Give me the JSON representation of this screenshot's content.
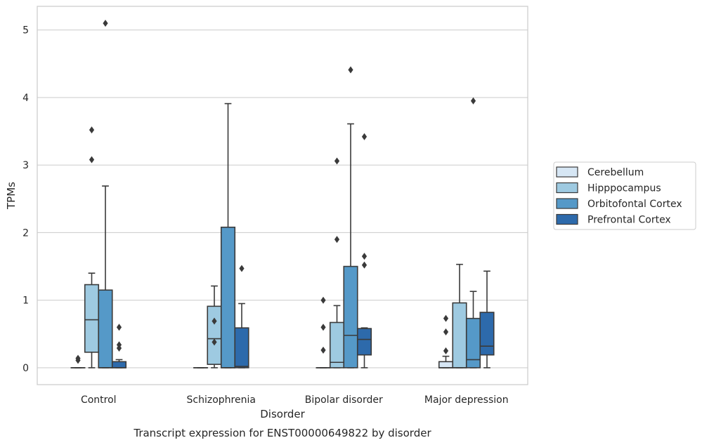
{
  "chart_data": {
    "type": "box",
    "title": "Transcript expression for ENST00000649822 by disorder",
    "xlabel": "Disorder",
    "ylabel": "TPMs",
    "ylim": [
      -0.25,
      5.35
    ],
    "yticks": [
      0,
      1,
      2,
      3,
      4,
      5
    ],
    "grid": "horizontal",
    "legend_position": "right",
    "categories": [
      "Control",
      "Schizophrenia",
      "Bipolar disorder",
      "Major depression"
    ],
    "series": [
      {
        "name": "Cerebellum",
        "color": "#d6e6f4",
        "boxes": [
          {
            "category": "Control",
            "whisker_low": 0,
            "q1": 0,
            "median": 0,
            "q3": 0,
            "whisker_high": 0,
            "outliers": [
              0.11,
              0.14
            ]
          },
          {
            "category": "Schizophrenia",
            "whisker_low": 0,
            "q1": 0,
            "median": 0,
            "q3": 0,
            "whisker_high": 0,
            "outliers": []
          },
          {
            "category": "Bipolar disorder",
            "whisker_low": 0,
            "q1": 0,
            "median": 0,
            "q3": 0,
            "whisker_high": 0,
            "outliers": [
              0.26,
              0.6,
              1.0
            ]
          },
          {
            "category": "Major depression",
            "whisker_low": 0,
            "q1": 0,
            "median": 0,
            "q3": 0.09,
            "whisker_high": 0.17,
            "outliers": [
              0.25,
              0.53,
              0.73
            ]
          }
        ]
      },
      {
        "name": "Hipppocampus",
        "color": "#9ecae1",
        "boxes": [
          {
            "category": "Control",
            "whisker_low": 0,
            "q1": 0.23,
            "median": 0.71,
            "q3": 1.23,
            "whisker_high": 1.4,
            "outliers": [
              3.08,
              3.52
            ]
          },
          {
            "category": "Schizophrenia",
            "whisker_low": 0,
            "q1": 0.05,
            "median": 0.43,
            "q3": 0.91,
            "whisker_high": 1.21,
            "outliers": [
              0.38,
              0.69
            ]
          },
          {
            "category": "Bipolar disorder",
            "whisker_low": 0,
            "q1": 0,
            "median": 0.08,
            "q3": 0.67,
            "whisker_high": 0.92,
            "outliers": [
              1.9,
              3.06
            ]
          },
          {
            "category": "Major depression",
            "whisker_low": 0,
            "q1": 0,
            "median": 0,
            "q3": 0.96,
            "whisker_high": 1.53,
            "outliers": []
          }
        ]
      },
      {
        "name": "Orbitofontal Cortex",
        "color": "#5599c8",
        "boxes": [
          {
            "category": "Control",
            "whisker_low": 0,
            "q1": 0,
            "median": 0,
            "q3": 1.15,
            "whisker_high": 2.69,
            "outliers": [
              5.1
            ]
          },
          {
            "category": "Schizophrenia",
            "whisker_low": 0,
            "q1": 0,
            "median": 0,
            "q3": 2.08,
            "whisker_high": 3.91,
            "outliers": []
          },
          {
            "category": "Bipolar disorder",
            "whisker_low": 0,
            "q1": 0,
            "median": 0.48,
            "q3": 1.5,
            "whisker_high": 3.61,
            "outliers": [
              4.41
            ]
          },
          {
            "category": "Major depression",
            "whisker_low": 0,
            "q1": 0,
            "median": 0.12,
            "q3": 0.73,
            "whisker_high": 1.13,
            "outliers": [
              3.95
            ]
          }
        ]
      },
      {
        "name": "Prefrontal Cortex",
        "color": "#2d6aab",
        "boxes": [
          {
            "category": "Control",
            "whisker_low": 0,
            "q1": 0,
            "median": 0,
            "q3": 0.09,
            "whisker_high": 0.12,
            "outliers": [
              0.29,
              0.34,
              0.6
            ]
          },
          {
            "category": "Schizophrenia",
            "whisker_low": 0,
            "q1": 0,
            "median": 0.02,
            "q3": 0.59,
            "whisker_high": 0.95,
            "outliers": [
              1.47
            ]
          },
          {
            "category": "Bipolar disorder",
            "whisker_low": 0,
            "q1": 0.19,
            "median": 0.42,
            "q3": 0.58,
            "whisker_high": 0.59,
            "outliers": [
              1.52,
              1.65,
              3.42
            ]
          },
          {
            "category": "Major depression",
            "whisker_low": 0,
            "q1": 0.19,
            "median": 0.32,
            "q3": 0.82,
            "whisker_high": 1.43,
            "outliers": []
          }
        ]
      }
    ]
  }
}
